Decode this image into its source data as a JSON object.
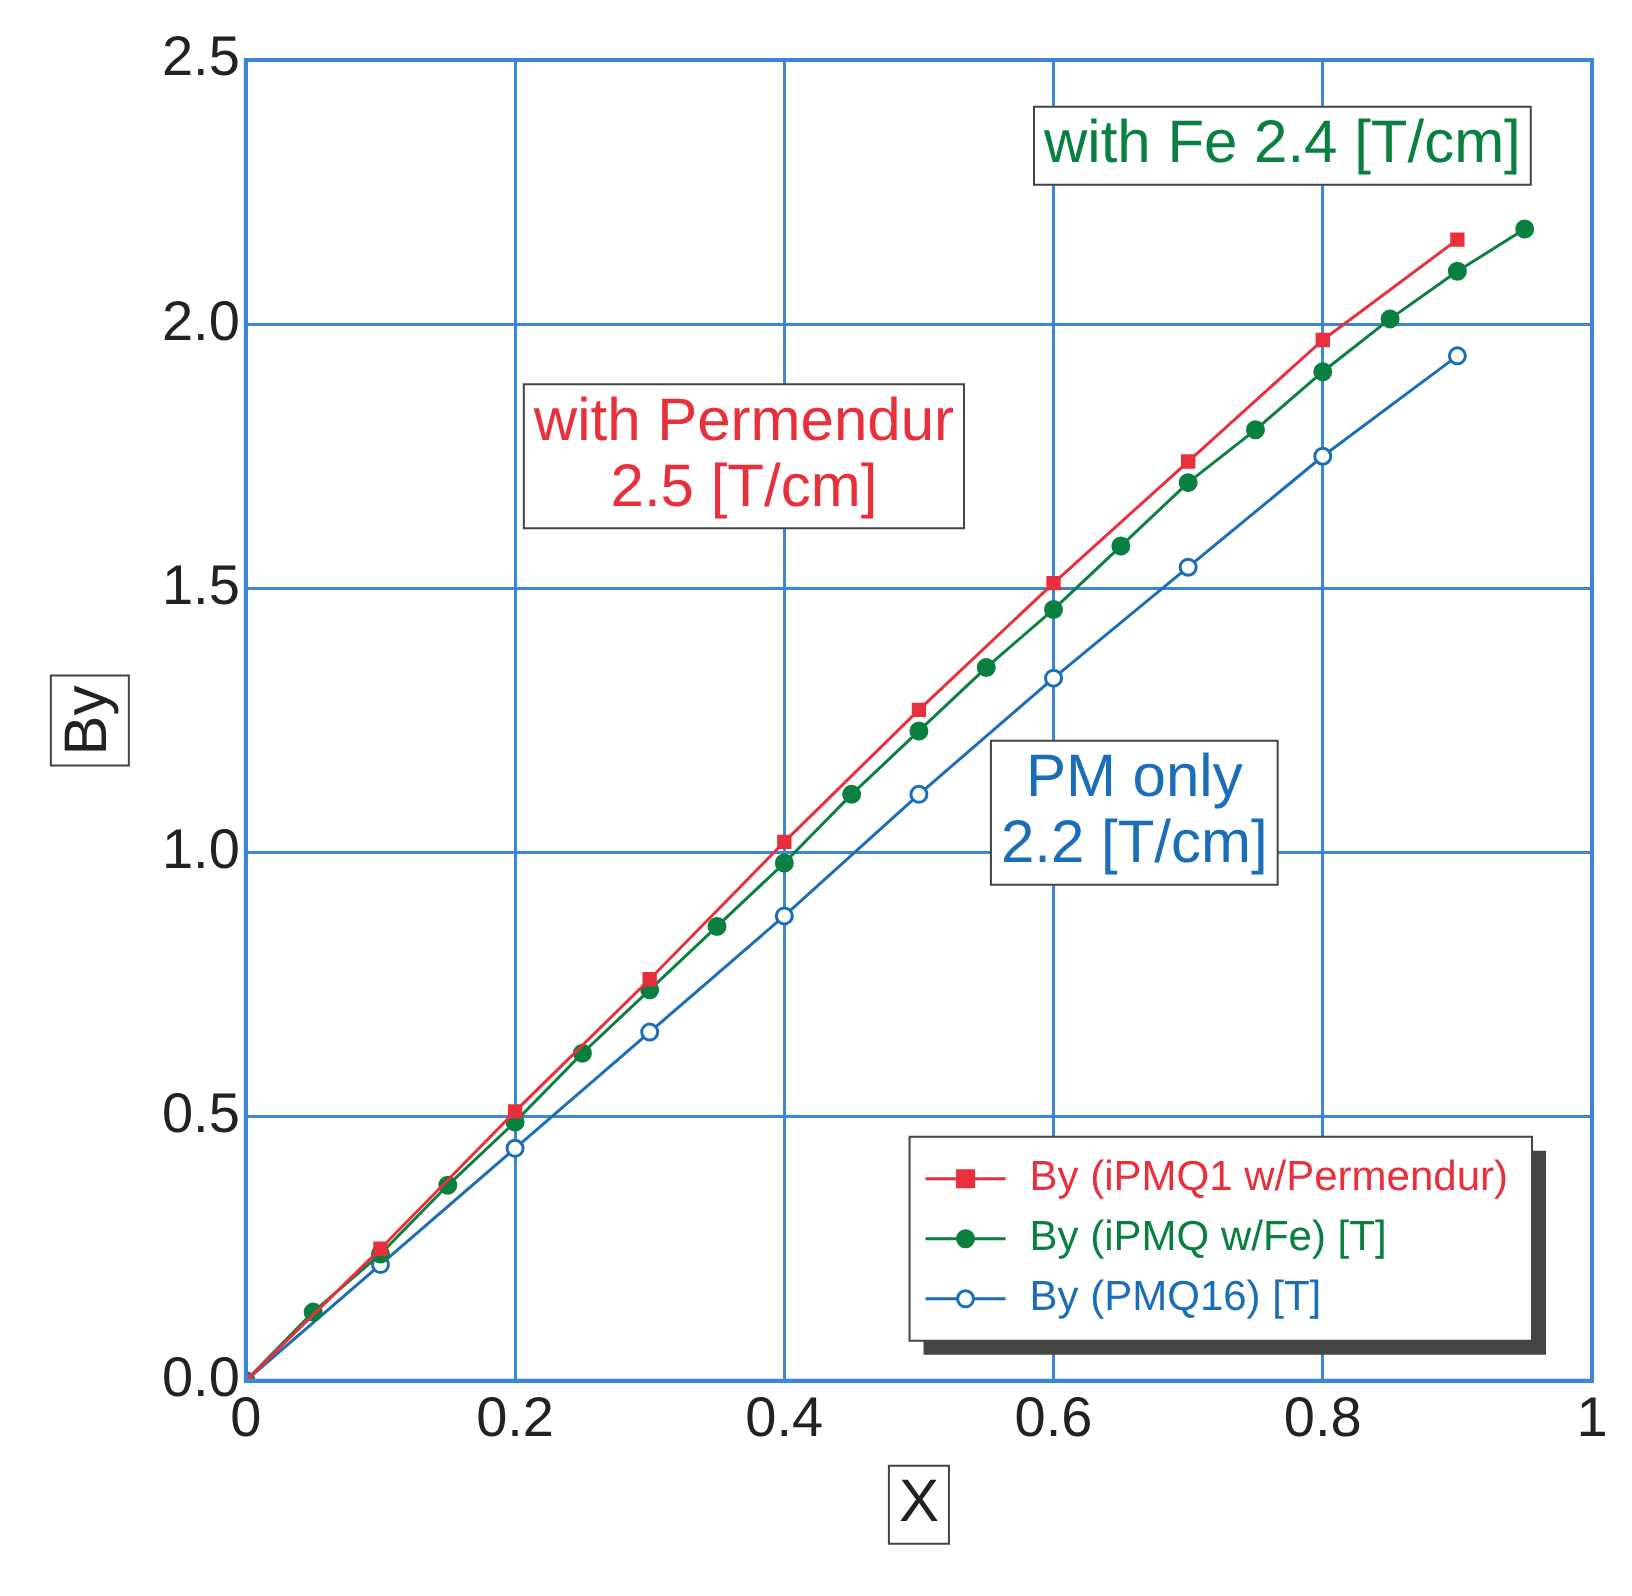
{
  "chart_data": {
    "type": "line",
    "xlabel": "X",
    "ylabel": "By",
    "xlim": [
      0,
      1
    ],
    "xticks": [
      {
        "value": 0,
        "label": "0"
      },
      {
        "value": 0.2,
        "label": "0.2"
      },
      {
        "value": 0.4,
        "label": "0.4"
      },
      {
        "value": 0.6,
        "label": "0.6"
      },
      {
        "value": 0.8,
        "label": "0.8"
      },
      {
        "value": 1,
        "label": "1"
      }
    ],
    "ylim": [
      0,
      2.5
    ],
    "yticks": [
      {
        "value": 0,
        "label": "0.0"
      },
      {
        "value": 0.5,
        "label": "0.5"
      },
      {
        "value": 1,
        "label": "1.0"
      },
      {
        "value": 1.5,
        "label": "1.5"
      },
      {
        "value": 2,
        "label": "2.0"
      },
      {
        "value": 2.5,
        "label": "2.5"
      }
    ],
    "grid": true,
    "legend": "bottom right",
    "line_style": "solid",
    "series": [
      {
        "name": "By (iPMQ1 w/Permendur)",
        "color": "#e8303c",
        "marker": "square",
        "x": [
          0,
          0.1,
          0.2,
          0.3,
          0.4,
          0.5,
          0.6,
          0.7,
          0.8,
          0.9
        ],
        "values": [
          0,
          0.25,
          0.51,
          0.76,
          1.02,
          1.27,
          1.51,
          1.74,
          1.97,
          2.16
        ]
      },
      {
        "name": "By (iPMQ w/Fe) [T]",
        "color": "#0a8040",
        "marker": "circle",
        "x": [
          0,
          0.05,
          0.1,
          0.15,
          0.2,
          0.25,
          0.3,
          0.35,
          0.4,
          0.45,
          0.5,
          0.55,
          0.6,
          0.65,
          0.7,
          0.75,
          0.8,
          0.85,
          0.9,
          0.95
        ],
        "values": [
          0,
          0.13,
          0.24,
          0.37,
          0.49,
          0.62,
          0.74,
          0.86,
          0.98,
          1.11,
          1.23,
          1.35,
          1.46,
          1.58,
          1.7,
          1.8,
          1.91,
          2.01,
          2.1,
          2.18
        ]
      },
      {
        "name": "By (PMQ16) [T]",
        "color": "#1a6eb8",
        "marker": "open circle",
        "x": [
          0,
          0.1,
          0.2,
          0.3,
          0.4,
          0.5,
          0.6,
          0.7,
          0.8,
          0.9
        ],
        "values": [
          0,
          0.22,
          0.44,
          0.66,
          0.88,
          1.11,
          1.33,
          1.54,
          1.75,
          1.94
        ]
      }
    ],
    "annotations": [
      "with Fe 2.4 [T/cm]",
      "with Permendur\n2.5 [T/cm]",
      "PM only\n2.2 [T/cm]"
    ]
  }
}
